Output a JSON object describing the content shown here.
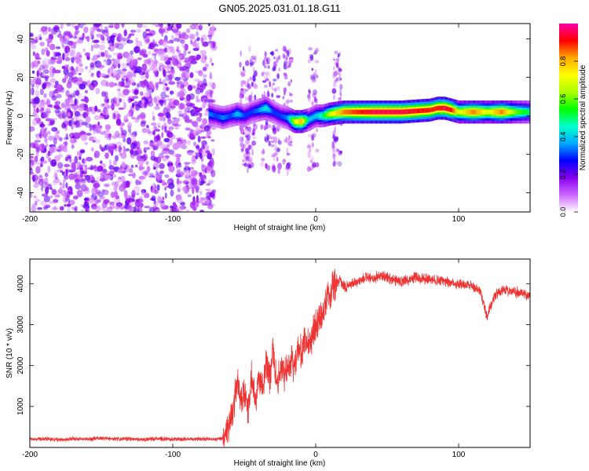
{
  "figure_title": "GN05.2025.031.01.18.G11",
  "chart_data": [
    {
      "type": "heatmap",
      "xlabel": "Height of straight line (km)",
      "ylabel": "Frequency (Hz)",
      "xlim": [
        -200,
        150
      ],
      "ylim": [
        -50,
        48
      ],
      "x_ticks": [
        -200,
        -100,
        0,
        100
      ],
      "y_ticks": [
        -40,
        -20,
        0,
        20,
        40
      ],
      "grid": false,
      "colorbar": {
        "label": "Normalized spectral amplitude",
        "range": [
          0.0,
          1.0
        ],
        "ticks": [
          0.0,
          0.2,
          0.4,
          0.6,
          0.8
        ],
        "colormap": [
          "#ffffff",
          "#cc66ff",
          "#8800ee",
          "#0000ff",
          "#00aaff",
          "#00ffcc",
          "#00ff00",
          "#aaff00",
          "#ffff00",
          "#ffaa00",
          "#ff0000",
          "#ff00aa"
        ]
      },
      "noise_region_x": [
        -200,
        -73
      ],
      "ridge": {
        "x": [
          -75,
          -70,
          -65,
          -60,
          -55,
          -50,
          -45,
          -40,
          -35,
          -30,
          -25,
          -20,
          -15,
          -10,
          -5,
          0,
          5,
          10,
          20,
          40,
          60,
          80,
          85,
          90,
          95,
          100,
          110,
          120,
          130,
          140,
          150
        ],
        "frequency": [
          1,
          0,
          -1,
          0,
          1,
          0,
          2,
          3,
          4,
          2,
          0,
          -1,
          -3,
          -3,
          -2,
          0,
          0,
          1,
          2,
          2,
          2,
          3,
          4,
          4,
          3,
          2,
          2,
          2,
          2,
          2,
          2
        ],
        "amplitude": [
          0.35,
          0.3,
          0.35,
          0.3,
          0.4,
          0.3,
          0.3,
          0.35,
          0.45,
          0.3,
          0.3,
          0.35,
          0.7,
          0.8,
          0.4,
          0.4,
          0.5,
          0.7,
          0.85,
          0.95,
          0.95,
          0.9,
          0.9,
          0.95,
          0.9,
          0.7,
          0.85,
          0.7,
          0.85,
          0.6,
          0.5
        ]
      },
      "vertical_streaks_x": [
        -50,
        -45,
        -35,
        -28,
        -20,
        -2,
        15
      ]
    },
    {
      "type": "line",
      "xlabel": "Height of straight line (km)",
      "ylabel": "SNR (10 * v/v)",
      "xlim": [
        -200,
        150
      ],
      "ylim": [
        0,
        4600
      ],
      "x_ticks": [
        -200,
        -100,
        0,
        100
      ],
      "y_ticks": [
        1000,
        2000,
        3000,
        4000
      ],
      "grid": false,
      "color": "#ee3333",
      "x": [
        -200,
        -190,
        -180,
        -170,
        -160,
        -150,
        -140,
        -130,
        -120,
        -110,
        -100,
        -90,
        -80,
        -70,
        -65,
        -62,
        -60,
        -58,
        -55,
        -52,
        -50,
        -47,
        -45,
        -42,
        -40,
        -37,
        -35,
        -32,
        -30,
        -27,
        -25,
        -22,
        -20,
        -17,
        -15,
        -12,
        -10,
        -7,
        -5,
        -2,
        0,
        3,
        5,
        8,
        10,
        12,
        15,
        17,
        20,
        25,
        30,
        35,
        40,
        45,
        50,
        55,
        60,
        70,
        80,
        90,
        100,
        110,
        115,
        120,
        125,
        130,
        140,
        150
      ],
      "values": [
        200,
        220,
        190,
        210,
        200,
        230,
        200,
        210,
        195,
        215,
        200,
        205,
        210,
        200,
        230,
        400,
        700,
        900,
        1600,
        1100,
        1300,
        900,
        1800,
        1200,
        1700,
        1500,
        2100,
        1700,
        2400,
        1400,
        2000,
        1800,
        1900,
        2200,
        2000,
        2400,
        2300,
        2600,
        2500,
        2800,
        3000,
        3200,
        3300,
        3700,
        3600,
        3900,
        4000,
        4100,
        3900,
        4000,
        4050,
        4150,
        4100,
        4200,
        4150,
        4100,
        4050,
        4150,
        4100,
        4050,
        4000,
        3950,
        3800,
        3200,
        3700,
        3850,
        3800,
        3700
      ]
    }
  ]
}
